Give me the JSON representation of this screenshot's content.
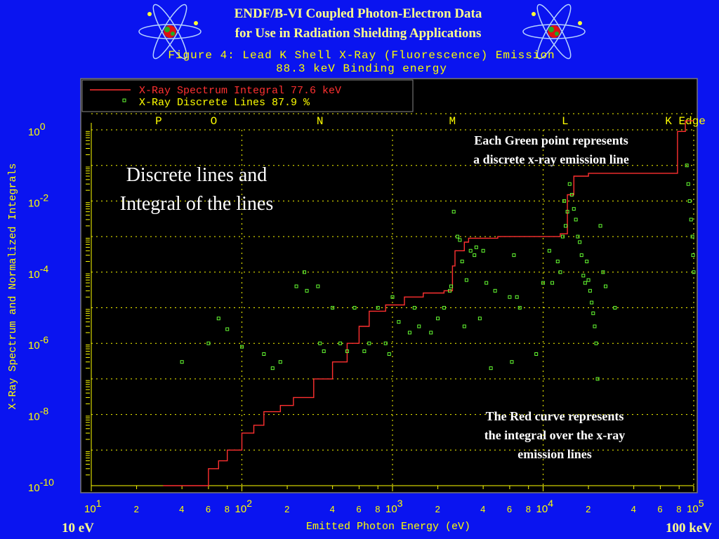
{
  "header": {
    "title_line1": "ENDF/B-VI Coupled Photon-Electron Data",
    "title_line2": "for Use in Radiation Shielding Applications",
    "figure_line1": "Figure 4: Lead K Shell X-Ray (Fluorescence) Emission",
    "figure_line2": "88.3 keV Binding energy"
  },
  "footer": {
    "left": "10 eV",
    "right": "100 keV"
  },
  "colors": {
    "background": "#0a14f0",
    "plot": "#000000",
    "curve": "#ff3030",
    "points": "#66ff33",
    "axis_text": "#ffff00",
    "grid": "#ffff00"
  },
  "chart_data": {
    "type": "line",
    "xlabel": "Emitted Photon Energy (eV)",
    "ylabel": "X-Ray Spectrum and Normalized Integrals",
    "xscale": "log",
    "yscale": "log",
    "xlim": [
      10,
      100000
    ],
    "ylim": [
      1e-10,
      1
    ],
    "xticks": [
      {
        "v": 10,
        "l": "10",
        "e": "1"
      },
      {
        "v": 20,
        "l": "2"
      },
      {
        "v": 40,
        "l": "4"
      },
      {
        "v": 60,
        "l": "6"
      },
      {
        "v": 80,
        "l": "8"
      },
      {
        "v": 100,
        "l": "10",
        "e": "2"
      },
      {
        "v": 200,
        "l": "2"
      },
      {
        "v": 400,
        "l": "4"
      },
      {
        "v": 600,
        "l": "6"
      },
      {
        "v": 800,
        "l": "8"
      },
      {
        "v": 1000,
        "l": "10",
        "e": "3"
      },
      {
        "v": 2000,
        "l": "2"
      },
      {
        "v": 4000,
        "l": "4"
      },
      {
        "v": 6000,
        "l": "6"
      },
      {
        "v": 8000,
        "l": "8"
      },
      {
        "v": 10000,
        "l": "10",
        "e": "4"
      },
      {
        "v": 20000,
        "l": "2"
      },
      {
        "v": 40000,
        "l": "4"
      },
      {
        "v": 60000,
        "l": "6"
      },
      {
        "v": 80000,
        "l": "8"
      },
      {
        "v": 100000,
        "l": "10",
        "e": "5"
      }
    ],
    "yticks": [
      {
        "v": 1,
        "l": "10",
        "e": "0"
      },
      {
        "v": 0.01,
        "l": "10",
        "e": "-2"
      },
      {
        "v": 0.0001,
        "l": "10",
        "e": "-4"
      },
      {
        "v": 1e-06,
        "l": "10",
        "e": "-6"
      },
      {
        "v": 1e-08,
        "l": "10",
        "e": "-8"
      },
      {
        "v": 1e-10,
        "l": "10",
        "e": "-10"
      }
    ],
    "grid": true,
    "legend": {
      "position": "top-left",
      "items": [
        {
          "marker": "line",
          "label": "X-Ray Spectrum Integral 77.6 keV"
        },
        {
          "marker": "square",
          "label": "X-Ray Discrete Lines    87.9 %"
        }
      ]
    },
    "shell_edges": [
      {
        "label": "P",
        "x": 28
      },
      {
        "label": "O",
        "x": 65
      },
      {
        "label": "N",
        "x": 330
      },
      {
        "label": "M",
        "x": 2500
      },
      {
        "label": "L",
        "x": 14000
      },
      {
        "label": "K Edge",
        "x": 88000
      }
    ],
    "annotations": [
      "Discrete lines and",
      "Integral of the lines",
      "Each Green point represents",
      "a discrete x-ray emission line",
      "The Red curve represents",
      "the integral over the x-ray",
      "emission lines"
    ],
    "series": [
      {
        "type": "step",
        "x": [
          40,
          50,
          60,
          70,
          80,
          100,
          120,
          140,
          180,
          220,
          300,
          400,
          500,
          600,
          700,
          900,
          1200,
          1600,
          2200,
          2500,
          2600,
          3000,
          3200,
          5000,
          9000,
          13000,
          14500,
          16000,
          20000,
          30000,
          45000,
          70000,
          78000,
          88000
        ],
        "y": [
          1e-10,
          1e-10,
          3e-10,
          5e-10,
          1e-09,
          3e-09,
          5e-09,
          1.2e-08,
          1.8e-08,
          3e-08,
          1e-07,
          3e-07,
          1e-06,
          3e-06,
          8e-06,
          1.2e-05,
          2e-05,
          2.6e-05,
          3e-05,
          0.00015,
          0.0004,
          0.0007,
          0.0009,
          0.001,
          0.001,
          0.0012,
          0.015,
          0.05,
          0.06,
          0.06,
          0.06,
          0.06,
          0.9,
          1.8
        ]
      },
      {
        "type": "scatter",
        "points": [
          [
            40,
            3e-07
          ],
          [
            60,
            1e-06
          ],
          [
            70,
            5e-06
          ],
          [
            80,
            2.5e-06
          ],
          [
            100,
            8e-07
          ],
          [
            140,
            5e-07
          ],
          [
            160,
            2e-07
          ],
          [
            180,
            3e-07
          ],
          [
            230,
            4e-05
          ],
          [
            260,
            0.0001
          ],
          [
            270,
            3e-05
          ],
          [
            320,
            4e-05
          ],
          [
            330,
            1e-06
          ],
          [
            350,
            6e-07
          ],
          [
            400,
            1e-05
          ],
          [
            450,
            1e-06
          ],
          [
            500,
            6e-07
          ],
          [
            560,
            1e-05
          ],
          [
            650,
            6e-07
          ],
          [
            700,
            1e-06
          ],
          [
            800,
            1e-05
          ],
          [
            900,
            1e-06
          ],
          [
            950,
            5e-07
          ],
          [
            1000,
            2e-05
          ],
          [
            1100,
            4e-06
          ],
          [
            1300,
            2e-06
          ],
          [
            1400,
            1e-05
          ],
          [
            1500,
            3e-06
          ],
          [
            1800,
            2e-06
          ],
          [
            2000,
            5e-06
          ],
          [
            2200,
            1e-05
          ],
          [
            2400,
            3e-05
          ],
          [
            2450,
            4e-05
          ],
          [
            2550,
            0.005
          ],
          [
            2700,
            0.001
          ],
          [
            2800,
            0.0008
          ],
          [
            2900,
            0.0002
          ],
          [
            3000,
            3e-06
          ],
          [
            3100,
            6e-05
          ],
          [
            3300,
            0.0004
          ],
          [
            3500,
            0.0003
          ],
          [
            3600,
            0.0005
          ],
          [
            3800,
            5e-06
          ],
          [
            4000,
            0.0004
          ],
          [
            4200,
            5e-05
          ],
          [
            4500,
            2e-07
          ],
          [
            4800,
            3e-05
          ],
          [
            6000,
            2e-05
          ],
          [
            6200,
            3e-07
          ],
          [
            6400,
            0.0003
          ],
          [
            6700,
            2e-05
          ],
          [
            7000,
            1e-05
          ],
          [
            9000,
            5e-07
          ],
          [
            10000,
            5e-05
          ],
          [
            11000,
            0.0004
          ],
          [
            11500,
            5e-05
          ],
          [
            12500,
            0.0002
          ],
          [
            13000,
            0.0001
          ],
          [
            13500,
            0.001
          ],
          [
            13800,
            0.01
          ],
          [
            14100,
            0.002
          ],
          [
            14500,
            0.005
          ],
          [
            15000,
            0.03
          ],
          [
            15500,
            0.015
          ],
          [
            16000,
            0.006
          ],
          [
            16500,
            0.003
          ],
          [
            17000,
            0.001
          ],
          [
            17500,
            0.0007
          ],
          [
            18000,
            0.0003
          ],
          [
            18500,
            8e-05
          ],
          [
            19000,
            5e-05
          ],
          [
            19500,
            0.0002
          ],
          [
            20000,
            6e-05
          ],
          [
            20500,
            3e-05
          ],
          [
            21000,
            1.4e-05
          ],
          [
            21500,
            7e-06
          ],
          [
            22000,
            3e-06
          ],
          [
            22500,
            1e-06
          ],
          [
            23000,
            1e-07
          ],
          [
            24000,
            0.002
          ],
          [
            25000,
            0.0001
          ],
          [
            26000,
            4e-05
          ],
          [
            30000,
            1e-05
          ],
          [
            90000,
            0.1
          ],
          [
            92000,
            0.03
          ],
          [
            94000,
            0.01
          ],
          [
            96000,
            0.003
          ],
          [
            98000,
            0.001
          ],
          [
            99000,
            0.0003
          ],
          [
            100000,
            0.0001
          ]
        ]
      }
    ]
  }
}
